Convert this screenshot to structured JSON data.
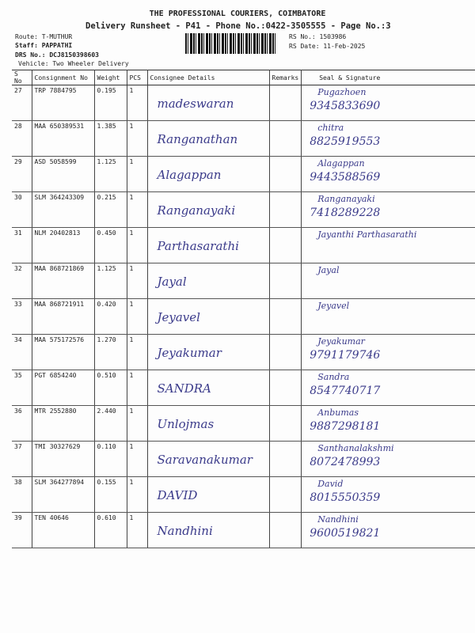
{
  "header": {
    "company": "THE PROFESSIONAL COURIERS, COIMBATORE",
    "subtitle": "Delivery Runsheet - P41 - Phone No.:0422-3505555 - Page No.:3",
    "route": "Route: T-MUTHUR",
    "staff": "Staff: PAPPATHI",
    "drs": "DRS No.: DCJ8150398603",
    "vehicle": "Vehicle: Two Wheeler Delivery",
    "rs_no": "RS No.: 1503986",
    "rs_date": "RS Date: 11-Feb-2025"
  },
  "columns": [
    "S No",
    "Consignment No",
    "Weight",
    "PCS",
    "Consignee Details",
    "Remarks",
    "Seal & Signature"
  ],
  "rows": [
    {
      "sno": "27",
      "cn": "TRP 7884795",
      "wt": "0.195",
      "pcs": "1",
      "name": "madeswaran",
      "sig": "Pugazhoen",
      "phone": "9345833690"
    },
    {
      "sno": "28",
      "cn": "MAA 650389531",
      "wt": "1.385",
      "pcs": "1",
      "name": "Ranganathan",
      "sig": "chitra",
      "phone": "8825919553"
    },
    {
      "sno": "29",
      "cn": "ASD 5058599",
      "wt": "1.125",
      "pcs": "1",
      "name": "Alagappan",
      "sig": "Alagappan",
      "phone": "9443588569"
    },
    {
      "sno": "30",
      "cn": "SLM 364243309",
      "wt": "0.215",
      "pcs": "1",
      "name": "Ranganayaki",
      "sig": "Ranganayaki",
      "phone": "7418289228"
    },
    {
      "sno": "31",
      "cn": "NLM 20402813",
      "wt": "0.450",
      "pcs": "1",
      "name": "Parthasarathi",
      "sig": "Jayanthi Parthasarathi",
      "phone": ""
    },
    {
      "sno": "32",
      "cn": "MAA 868721869",
      "wt": "1.125",
      "pcs": "1",
      "name": "Jayal",
      "sig": "Jayal",
      "phone": ""
    },
    {
      "sno": "33",
      "cn": "MAA 868721911",
      "wt": "0.420",
      "pcs": "1",
      "name": "Jeyavel",
      "sig": "Jeyavel",
      "phone": ""
    },
    {
      "sno": "34",
      "cn": "MAA 575172576",
      "wt": "1.270",
      "pcs": "1",
      "name": "Jeyakumar",
      "sig": "Jeyakumar",
      "phone": "9791179746"
    },
    {
      "sno": "35",
      "cn": "PGT 6854240",
      "wt": "0.510",
      "pcs": "1",
      "name": "SANDRA",
      "sig": "Sandra",
      "phone": "8547740717"
    },
    {
      "sno": "36",
      "cn": "MTR 2552880",
      "wt": "2.440",
      "pcs": "1",
      "name": "Unlojmas",
      "sig": "Anbumas",
      "phone": "9887298181"
    },
    {
      "sno": "37",
      "cn": "TMI 30327629",
      "wt": "0.110",
      "pcs": "1",
      "name": "Saravanakumar",
      "sig": "Santhanalakshmi",
      "phone": "8072478993"
    },
    {
      "sno": "38",
      "cn": "SLM 364277894",
      "wt": "0.155",
      "pcs": "1",
      "name": "DAVID",
      "sig": "David",
      "phone": "8015550359"
    },
    {
      "sno": "39",
      "cn": "TEN 40646",
      "wt": "0.610",
      "pcs": "1",
      "name": "Nandhini",
      "sig": "Nandhini",
      "phone": "9600519821"
    }
  ]
}
